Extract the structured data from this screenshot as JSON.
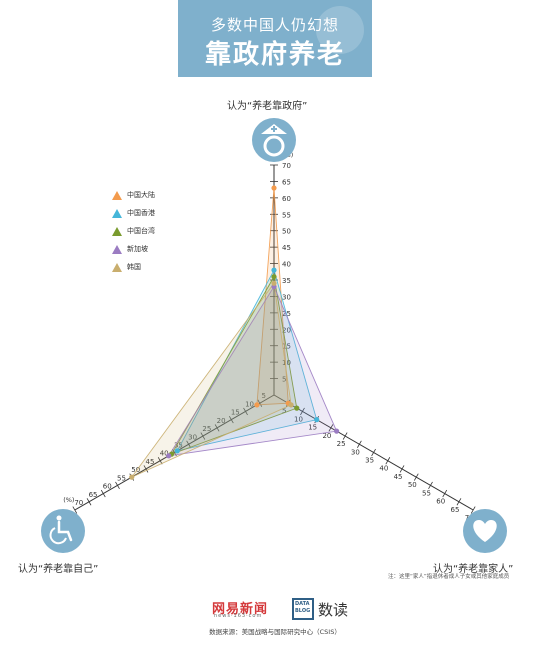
{
  "banner": {
    "line1": "多数中国人仍幻想",
    "line2": "靠政府养老"
  },
  "chart_data": {
    "type": "radar",
    "unit": "(%)",
    "axes": [
      "认为“养老靠政府”",
      "认为“养老靠家人”",
      "认为“养老靠自己”"
    ],
    "ticks": [
      5,
      10,
      15,
      20,
      25,
      30,
      35,
      40,
      45,
      50,
      55,
      60,
      65,
      70
    ],
    "range": [
      0,
      70
    ],
    "series": [
      {
        "name": "中国大陆",
        "color": "#f39b4d",
        "values": [
          63,
          5,
          6
        ]
      },
      {
        "name": "中国香港",
        "color": "#45b6d9",
        "values": [
          38,
          15,
          34
        ]
      },
      {
        "name": "中国台湾",
        "color": "#7a9b2e",
        "values": [
          36,
          8,
          36
        ]
      },
      {
        "name": "新加坡",
        "color": "#9b7cc2",
        "values": [
          33,
          22,
          37
        ]
      },
      {
        "name": "韩国",
        "color": "#c9ae6e",
        "values": [
          34,
          6,
          50
        ]
      }
    ]
  },
  "note": "注：这里“家人”指退休者成人子女或其他家庭成员",
  "footer": {
    "netease_name": "网易新闻",
    "netease_url": "news·163·com",
    "datablog": "DATA BLOG",
    "shudu": "数读",
    "source": "数据来源：美国战略与国际研究中心（CSIS）"
  }
}
